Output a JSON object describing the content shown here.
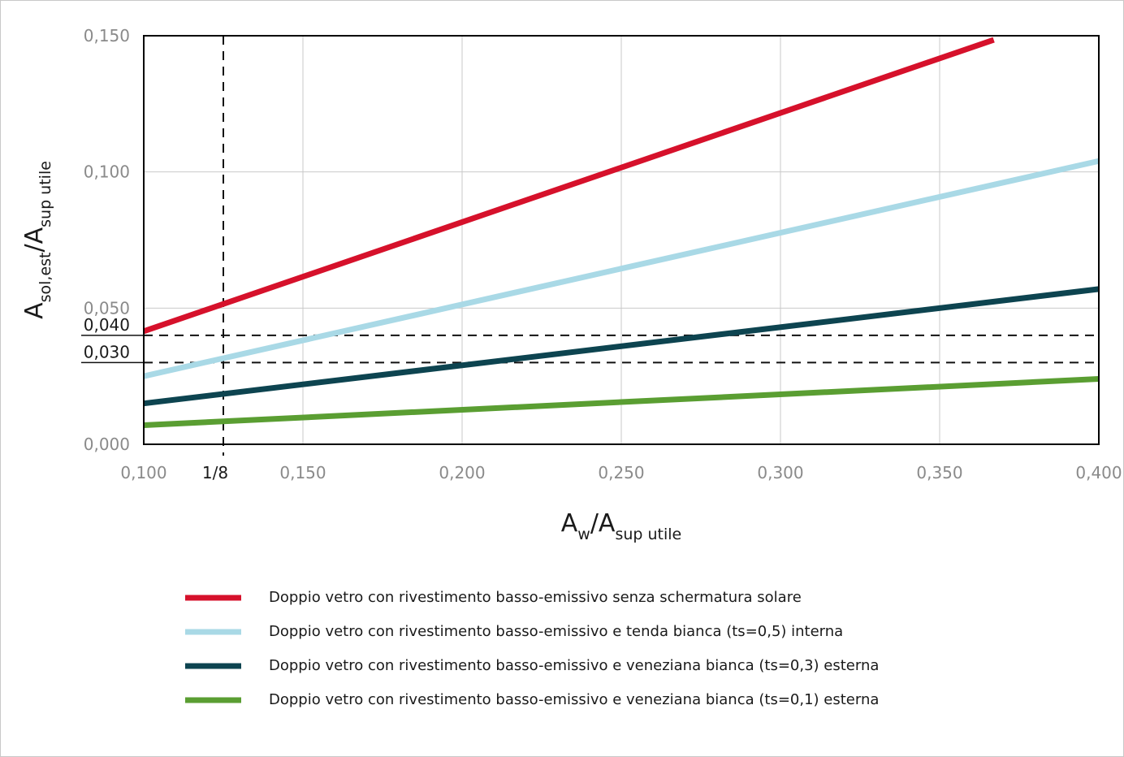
{
  "chart_data": {
    "type": "line",
    "xlabel": {
      "main": "A",
      "sub1": "w",
      "mid": "/A",
      "sub2": "sup utile"
    },
    "ylabel": {
      "main": "A",
      "sub1": "sol,est",
      "mid": "/A",
      "sub2": "sup utile"
    },
    "xlim": [
      0.1,
      0.4
    ],
    "ylim": [
      0.0,
      0.15
    ],
    "x_ticks": [
      {
        "value": 0.1,
        "label": "0,100"
      },
      {
        "value": 0.15,
        "label": "0,150"
      },
      {
        "value": 0.2,
        "label": "0,200"
      },
      {
        "value": 0.25,
        "label": "0,250"
      },
      {
        "value": 0.3,
        "label": "0,300"
      },
      {
        "value": 0.35,
        "label": "0,350"
      },
      {
        "value": 0.4,
        "label": "0,400"
      }
    ],
    "y_ticks": [
      {
        "value": 0.0,
        "label": "0,000"
      },
      {
        "value": 0.05,
        "label": "0,050"
      },
      {
        "value": 0.1,
        "label": "0,100"
      },
      {
        "value": 0.15,
        "label": "0,150"
      }
    ],
    "reference_lines": [
      {
        "axis": "x",
        "value": 0.125,
        "label": "1/8"
      },
      {
        "axis": "y",
        "value": 0.04,
        "label": "0,040"
      },
      {
        "axis": "y",
        "value": 0.03,
        "label": "0,030"
      }
    ],
    "grid": true,
    "legend_position": "bottom",
    "series": [
      {
        "name": "Doppio vetro con rivestimento basso-emissivo senza schermatura solare",
        "color": "#d6112b",
        "x": [
          0.1,
          0.367
        ],
        "y": [
          0.0415,
          0.1485
        ]
      },
      {
        "name": "Doppio vetro con rivestimento basso-emissivo e tenda bianca (ts=0,5) interna",
        "color": "#a9d9e6",
        "x": [
          0.1,
          0.4
        ],
        "y": [
          0.025,
          0.104
        ]
      },
      {
        "name": "Doppio vetro con rivestimento basso-emissivo e veneziana bianca (ts=0,3) esterna",
        "color": "#0d4450",
        "x": [
          0.1,
          0.4
        ],
        "y": [
          0.015,
          0.057
        ]
      },
      {
        "name": "Doppio vetro con rivestimento basso-emissivo e veneziana bianca (ts=0,1) esterna",
        "color": "#5a9e32",
        "x": [
          0.1,
          0.4
        ],
        "y": [
          0.007,
          0.024
        ]
      }
    ]
  }
}
